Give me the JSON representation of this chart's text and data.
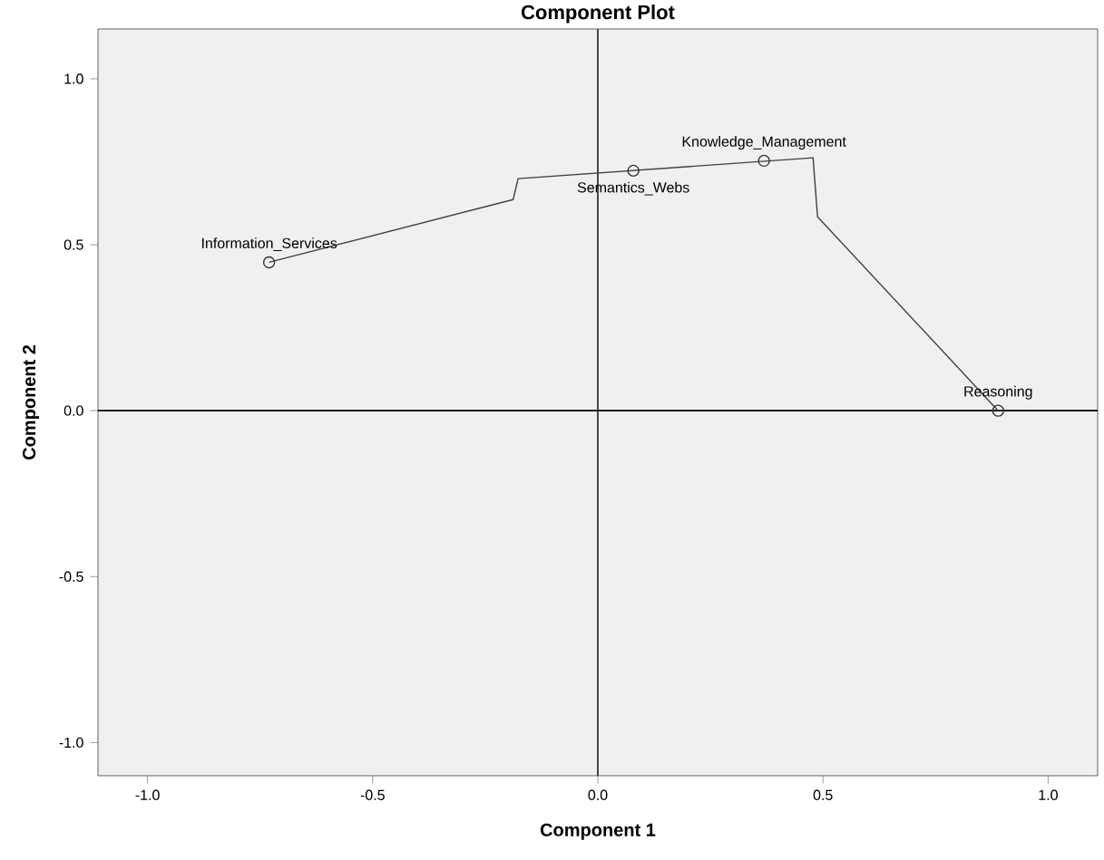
{
  "chart_data": {
    "type": "scatter",
    "title": "Component Plot",
    "xlabel": "Component 1",
    "ylabel": "Component 2",
    "xlim": [
      -1.11,
      1.11
    ],
    "ylim": [
      -1.1,
      1.15
    ],
    "xticks": [
      {
        "value": -1,
        "label": "-1.0"
      },
      {
        "value": -0.5,
        "label": "-0.5"
      },
      {
        "value": 0,
        "label": "0.0"
      },
      {
        "value": 0.5,
        "label": "0.5"
      },
      {
        "value": 1,
        "label": "1.0"
      }
    ],
    "yticks": [
      {
        "value": -1,
        "label": "-1.0"
      },
      {
        "value": -0.5,
        "label": "-0.5"
      },
      {
        "value": 0,
        "label": "0.0"
      },
      {
        "value": 0.5,
        "label": "0.5"
      },
      {
        "value": 1,
        "label": "1.0"
      }
    ],
    "marker": "circle",
    "line_style": "solid",
    "series": [
      {
        "type": "line",
        "marker": "none",
        "color": "#404040",
        "x": [
          -0.73,
          -0.188,
          -0.177,
          0.478,
          0.488,
          0.889
        ],
        "values": [
          0.447,
          0.636,
          0.699,
          0.762,
          0.584,
          0.0
        ]
      },
      {
        "color": "#333333",
        "x": [
          -0.73,
          0.079,
          0.369,
          0.889
        ],
        "values": [
          0.447,
          0.723,
          0.753,
          0.0
        ]
      }
    ],
    "ref_lines": [
      {
        "axis": "x",
        "value": 0,
        "color": "#333333"
      },
      {
        "axis": "y",
        "value": 0,
        "color": "#000000"
      }
    ],
    "annotations": [
      {
        "text": "Information_Services",
        "x": -0.73,
        "y": 0.447
      },
      {
        "text": "Semantics_Webs",
        "x": 0.079,
        "y": 0.723
      },
      {
        "text": "Knowledge_Management",
        "x": 0.369,
        "y": 0.753
      },
      {
        "text": "Reasoning",
        "x": 0.889,
        "y": 0.0
      }
    ]
  }
}
